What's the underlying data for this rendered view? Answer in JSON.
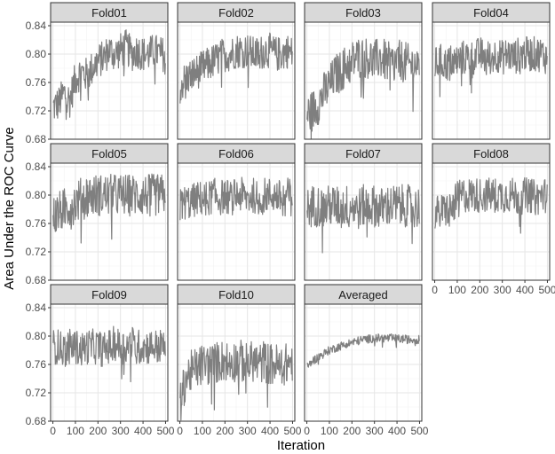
{
  "chart_data": {
    "type": "line",
    "title": "",
    "xlabel": "Iteration",
    "ylabel": "Area Under the ROC Curve",
    "xlim": [
      -10,
      510
    ],
    "ylim": [
      0.68,
      0.845
    ],
    "x_ticks": [
      0,
      100,
      200,
      300,
      400,
      500
    ],
    "y_ticks": [
      0.68,
      0.72,
      0.76,
      0.8,
      0.84
    ],
    "y_tick_labels": [
      "0.68",
      "0.72",
      "0.76",
      "0.80",
      "0.84"
    ],
    "grid": true,
    "line_color": "#7f7f7f",
    "strip_color": "#d9d9d9",
    "panels": [
      {
        "label": "Fold01",
        "x": [
          0,
          25,
          50,
          75,
          100,
          125,
          150,
          175,
          200,
          225,
          250,
          275,
          300,
          325,
          350,
          375,
          400,
          425,
          450,
          475,
          500
        ],
        "values": [
          0.725,
          0.73,
          0.745,
          0.735,
          0.765,
          0.775,
          0.77,
          0.78,
          0.79,
          0.795,
          0.805,
          0.8,
          0.805,
          0.81,
          0.8,
          0.805,
          0.8,
          0.8,
          0.805,
          0.8,
          0.8
        ],
        "noise": 0.025
      },
      {
        "label": "Fold02",
        "x": [
          0,
          25,
          50,
          75,
          100,
          125,
          150,
          175,
          200,
          225,
          250,
          275,
          300,
          325,
          350,
          375,
          400,
          425,
          450,
          475,
          500
        ],
        "values": [
          0.755,
          0.765,
          0.77,
          0.775,
          0.78,
          0.785,
          0.79,
          0.795,
          0.8,
          0.8,
          0.805,
          0.805,
          0.805,
          0.8,
          0.8,
          0.805,
          0.805,
          0.8,
          0.8,
          0.805,
          0.8
        ],
        "noise": 0.025
      },
      {
        "label": "Fold03",
        "x": [
          0,
          25,
          50,
          75,
          100,
          125,
          150,
          175,
          200,
          225,
          250,
          275,
          300,
          325,
          350,
          375,
          400,
          425,
          450,
          475,
          500
        ],
        "values": [
          0.715,
          0.72,
          0.73,
          0.745,
          0.755,
          0.77,
          0.775,
          0.785,
          0.79,
          0.795,
          0.795,
          0.795,
          0.79,
          0.795,
          0.79,
          0.785,
          0.79,
          0.79,
          0.785,
          0.785,
          0.785
        ],
        "noise": 0.03
      },
      {
        "label": "Fold04",
        "x": [
          0,
          25,
          50,
          75,
          100,
          125,
          150,
          175,
          200,
          225,
          250,
          275,
          300,
          325,
          350,
          375,
          400,
          425,
          450,
          475,
          500
        ],
        "values": [
          0.785,
          0.79,
          0.785,
          0.79,
          0.79,
          0.795,
          0.795,
          0.795,
          0.8,
          0.795,
          0.795,
          0.8,
          0.795,
          0.8,
          0.795,
          0.8,
          0.8,
          0.8,
          0.8,
          0.8,
          0.795
        ],
        "noise": 0.025
      },
      {
        "label": "Fold05",
        "x": [
          0,
          25,
          50,
          75,
          100,
          125,
          150,
          175,
          200,
          225,
          250,
          275,
          300,
          325,
          350,
          375,
          400,
          425,
          450,
          475,
          500
        ],
        "values": [
          0.77,
          0.775,
          0.78,
          0.785,
          0.79,
          0.795,
          0.8,
          0.8,
          0.8,
          0.8,
          0.8,
          0.8,
          0.8,
          0.8,
          0.8,
          0.8,
          0.8,
          0.8,
          0.8,
          0.8,
          0.8
        ],
        "noise": 0.03
      },
      {
        "label": "Fold06",
        "x": [
          0,
          25,
          50,
          75,
          100,
          125,
          150,
          175,
          200,
          225,
          250,
          275,
          300,
          325,
          350,
          375,
          400,
          425,
          450,
          475,
          500
        ],
        "values": [
          0.785,
          0.79,
          0.79,
          0.795,
          0.795,
          0.795,
          0.8,
          0.795,
          0.8,
          0.795,
          0.8,
          0.8,
          0.795,
          0.8,
          0.795,
          0.8,
          0.8,
          0.8,
          0.795,
          0.8,
          0.8
        ],
        "noise": 0.025
      },
      {
        "label": "Fold07",
        "x": [
          0,
          25,
          50,
          75,
          100,
          125,
          150,
          175,
          200,
          225,
          250,
          275,
          300,
          325,
          350,
          375,
          400,
          425,
          450,
          475,
          500
        ],
        "values": [
          0.78,
          0.785,
          0.785,
          0.78,
          0.785,
          0.785,
          0.78,
          0.785,
          0.785,
          0.78,
          0.785,
          0.785,
          0.785,
          0.78,
          0.785,
          0.785,
          0.785,
          0.785,
          0.785,
          0.78,
          0.785
        ],
        "noise": 0.03
      },
      {
        "label": "Fold08",
        "x": [
          0,
          25,
          50,
          75,
          100,
          125,
          150,
          175,
          200,
          225,
          250,
          275,
          300,
          325,
          350,
          375,
          400,
          425,
          450,
          475,
          500
        ],
        "values": [
          0.775,
          0.775,
          0.78,
          0.78,
          0.795,
          0.8,
          0.8,
          0.8,
          0.8,
          0.8,
          0.8,
          0.8,
          0.8,
          0.8,
          0.8,
          0.795,
          0.8,
          0.8,
          0.795,
          0.8,
          0.8
        ],
        "noise": 0.025
      },
      {
        "label": "Fold09",
        "x": [
          0,
          25,
          50,
          75,
          100,
          125,
          150,
          175,
          200,
          225,
          250,
          275,
          300,
          325,
          350,
          375,
          400,
          425,
          450,
          475,
          500
        ],
        "values": [
          0.785,
          0.785,
          0.78,
          0.785,
          0.785,
          0.78,
          0.785,
          0.785,
          0.785,
          0.78,
          0.785,
          0.79,
          0.785,
          0.785,
          0.79,
          0.785,
          0.785,
          0.785,
          0.785,
          0.785,
          0.785
        ],
        "noise": 0.025
      },
      {
        "label": "Fold10",
        "x": [
          0,
          25,
          50,
          75,
          100,
          125,
          150,
          175,
          200,
          225,
          250,
          275,
          300,
          325,
          350,
          375,
          400,
          425,
          450,
          475,
          500
        ],
        "values": [
          0.7,
          0.74,
          0.75,
          0.755,
          0.76,
          0.76,
          0.76,
          0.765,
          0.765,
          0.765,
          0.765,
          0.765,
          0.76,
          0.765,
          0.76,
          0.765,
          0.76,
          0.76,
          0.76,
          0.76,
          0.765
        ],
        "noise": 0.03
      },
      {
        "label": "Averaged",
        "x": [
          0,
          25,
          50,
          75,
          100,
          125,
          150,
          175,
          200,
          225,
          250,
          275,
          300,
          325,
          350,
          375,
          400,
          425,
          450,
          475,
          500
        ],
        "values": [
          0.755,
          0.765,
          0.77,
          0.775,
          0.78,
          0.783,
          0.786,
          0.789,
          0.791,
          0.793,
          0.795,
          0.796,
          0.797,
          0.797,
          0.797,
          0.797,
          0.796,
          0.796,
          0.795,
          0.795,
          0.795
        ],
        "noise": 0.006
      }
    ]
  }
}
